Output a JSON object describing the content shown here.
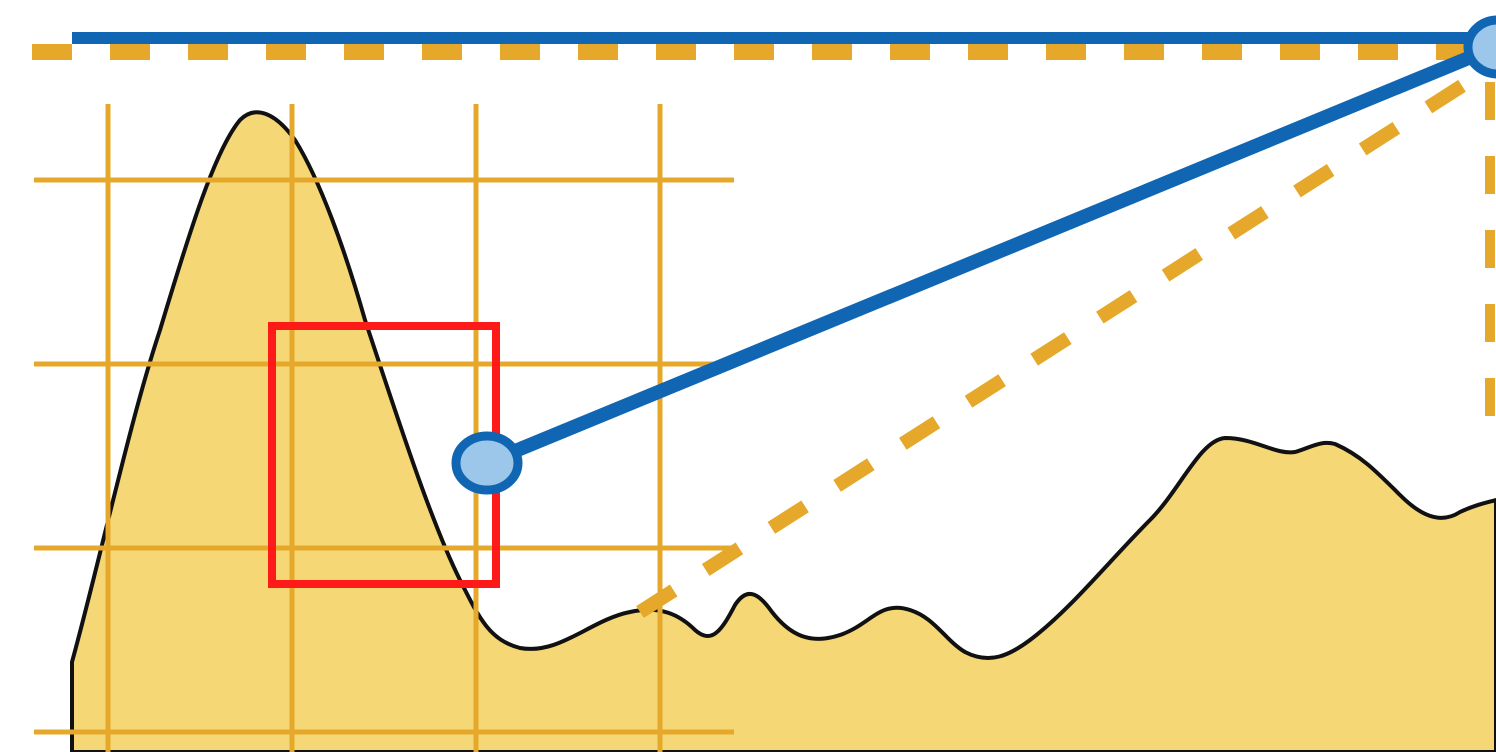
{
  "colors": {
    "background": "#ffffff",
    "terrain_fill": "#f5d776",
    "terrain_outline": "#111111",
    "grid": "#e6a82a",
    "dashed_guide": "#e6a82a",
    "connector_line": "#1166b3",
    "node_fill": "#9cc6ea",
    "node_stroke": "#1166b3",
    "highlight_box": "#ff1a1a"
  },
  "elements": [
    "terrain-profile",
    "grid-overlay",
    "horizontal-reference-line",
    "dashed-horizontal-guide",
    "dashed-diagonal-guide",
    "dashed-vertical-guide",
    "connector-line",
    "start-node",
    "end-node",
    "highlight-box"
  ]
}
